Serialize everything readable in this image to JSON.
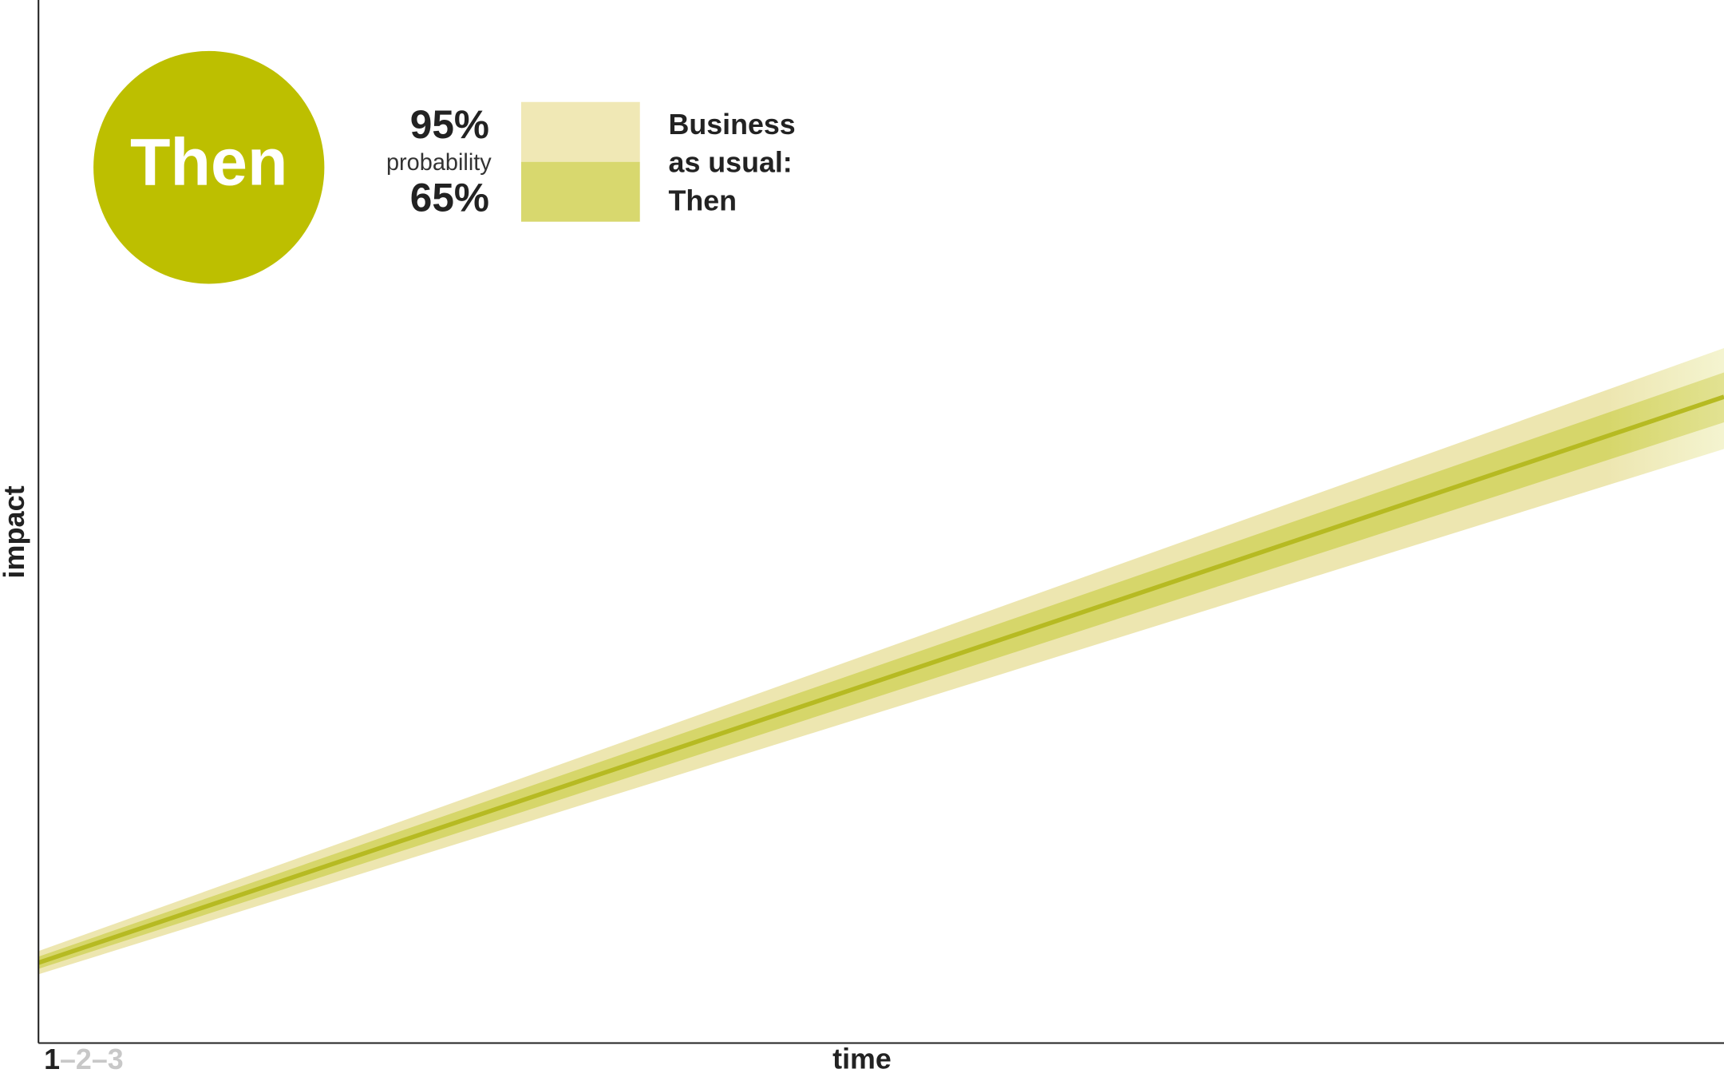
{
  "chart_data": {
    "type": "band",
    "badge": "Then",
    "legend": {
      "outer": "95%",
      "caption": "probability",
      "inner": "65%",
      "label": [
        "Business",
        "as usual:",
        "Then"
      ]
    },
    "y_label": "impact",
    "x_label": "time",
    "pager": {
      "current": "1",
      "rest": "–2–3"
    }
  }
}
